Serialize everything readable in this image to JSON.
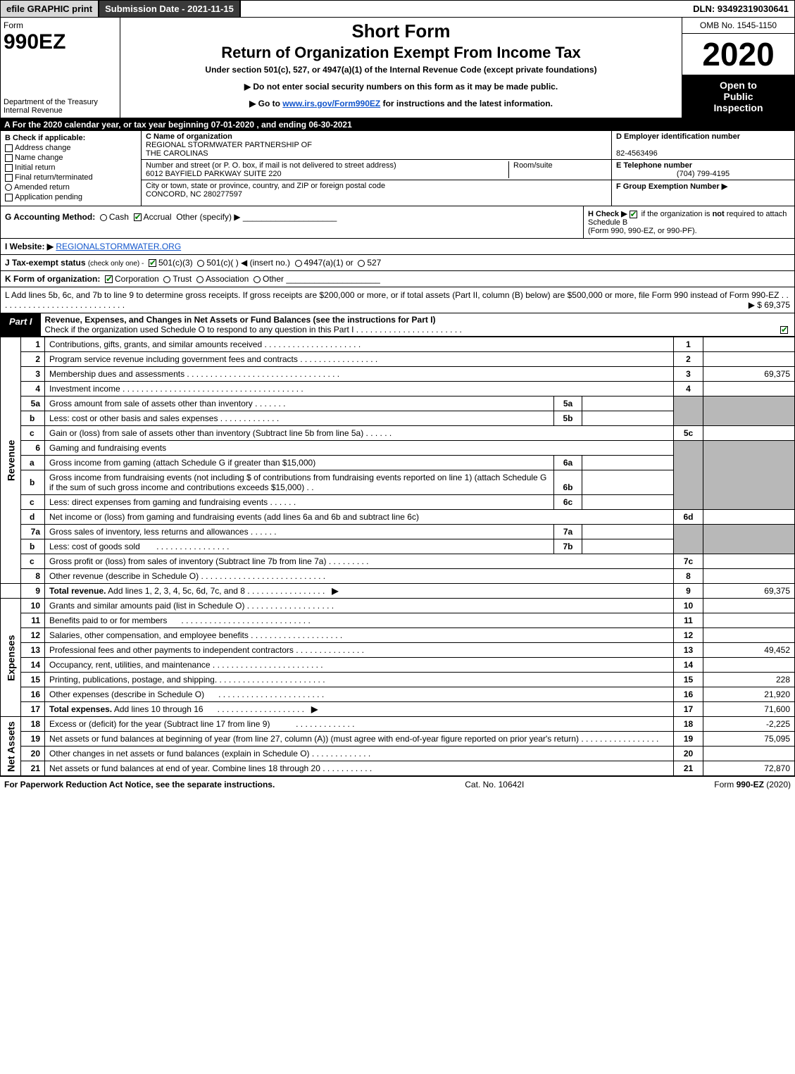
{
  "topbar": {
    "efile": "efile GRAPHIC print",
    "submission": "Submission Date - 2021-11-15",
    "dln": "DLN: 93492319030641"
  },
  "header": {
    "form_label": "Form",
    "form_number": "990EZ",
    "dept1": "Department of the Treasury",
    "dept2": "Internal Revenue",
    "title1": "Short Form",
    "title2": "Return of Organization Exempt From Income Tax",
    "under": "Under section 501(c), 527, or 4947(a)(1) of the Internal Revenue Code (except private foundations)",
    "note1": "▶ Do not enter social security numbers on this form as it may be made public.",
    "note2_pre": "▶ Go to ",
    "note2_link": "www.irs.gov/Form990EZ",
    "note2_post": " for instructions and the latest information.",
    "omb": "OMB No. 1545-1150",
    "year": "2020",
    "open1": "Open to",
    "open2": "Public",
    "open3": "Inspection"
  },
  "rowA": "A For the 2020 calendar year, or tax year beginning 07-01-2020 , and ending 06-30-2021",
  "sectionB": {
    "title": "B  Check if applicable:",
    "opts": [
      "Address change",
      "Name change",
      "Initial return",
      "Final return/terminated",
      "Amended return",
      "Application pending"
    ]
  },
  "sectionC": {
    "label": "C Name of organization",
    "name1": "REGIONAL STORMWATER PARTNERSHIP OF",
    "name2": "THE CAROLINAS",
    "street_label": "Number and street (or P. O. box, if mail is not delivered to street address)",
    "room_label": "Room/suite",
    "street": "6012 BAYFIELD PARKWAY SUITE 220",
    "city_label": "City or town, state or province, country, and ZIP or foreign postal code",
    "city": "CONCORD, NC  280277597"
  },
  "sectionDEF": {
    "d_label": "D Employer identification number",
    "d_val": "82-4563496",
    "e_label": "E Telephone number",
    "e_val": "(704) 799-4195",
    "f_label": "F Group Exemption Number  ▶"
  },
  "rowG": {
    "label": "G Accounting Method:",
    "cash": "Cash",
    "accrual": "Accrual",
    "other": "Other (specify) ▶"
  },
  "rowH": {
    "text1": "H  Check ▶",
    "text2": " if the organization is ",
    "not": "not",
    "text3": " required to attach Schedule B",
    "text4": "(Form 990, 990-EZ, or 990-PF)."
  },
  "rowI": {
    "label": "I Website: ▶",
    "link": "REGIONALSTORMWATER.ORG"
  },
  "rowJ": {
    "label": "J Tax-exempt status",
    "sub": "(check only one) -",
    "o1": "501(c)(3)",
    "o2": "501(c)(  ) ◀ (insert no.)",
    "o3": "4947(a)(1) or",
    "o4": "527"
  },
  "rowK": {
    "label": "K Form of organization:",
    "o1": "Corporation",
    "o2": "Trust",
    "o3": "Association",
    "o4": "Other"
  },
  "rowL": {
    "text": "L Add lines 5b, 6c, and 7b to line 9 to determine gross receipts. If gross receipts are $200,000 or more, or if total assets (Part II, column (B) below) are $500,000 or more, file Form 990 instead of Form 990-EZ",
    "amt_arrow": "▶ $",
    "amt": "69,375"
  },
  "part1": {
    "tab": "Part I",
    "title": "Revenue, Expenses, and Changes in Net Assets or Fund Balances (see the instructions for Part I)",
    "sub": "Check if the organization used Schedule O to respond to any question in this Part I"
  },
  "side": {
    "rev": "Revenue",
    "exp": "Expenses",
    "net": "Net Assets"
  },
  "lines": {
    "l1": "Contributions, gifts, grants, and similar amounts received",
    "l2": "Program service revenue including government fees and contracts",
    "l3": "Membership dues and assessments",
    "l3_amt": "69,375",
    "l4": "Investment income",
    "l5a": "Gross amount from sale of assets other than inventory",
    "l5b": "Less: cost or other basis and sales expenses",
    "l5c": "Gain or (loss) from sale of assets other than inventory (Subtract line 5b from line 5a)",
    "l6": "Gaming and fundraising events",
    "l6a": "Gross income from gaming (attach Schedule G if greater than $15,000)",
    "l6b": "Gross income from fundraising events (not including $                       of contributions from fundraising events reported on line 1) (attach Schedule G if the sum of such gross income and contributions exceeds $15,000)",
    "l6c": "Less: direct expenses from gaming and fundraising events",
    "l6d": "Net income or (loss) from gaming and fundraising events (add lines 6a and 6b and subtract line 6c)",
    "l7a": "Gross sales of inventory, less returns and allowances",
    "l7b": "Less: cost of goods sold",
    "l7c": "Gross profit or (loss) from sales of inventory (Subtract line 7b from line 7a)",
    "l8": "Other revenue (describe in Schedule O)",
    "l9": "Total revenue. Add lines 1, 2, 3, 4, 5c, 6d, 7c, and 8",
    "l9_bold": "Total revenue.",
    "l9_rest": " Add lines 1, 2, 3, 4, 5c, 6d, 7c, and 8",
    "l9_amt": "69,375",
    "l10": "Grants and similar amounts paid (list in Schedule O)",
    "l11": "Benefits paid to or for members",
    "l12": "Salaries, other compensation, and employee benefits",
    "l13": "Professional fees and other payments to independent contractors",
    "l13_amt": "49,452",
    "l14": "Occupancy, rent, utilities, and maintenance",
    "l15": "Printing, publications, postage, and shipping.",
    "l15_amt": "228",
    "l16": "Other expenses (describe in Schedule O)",
    "l16_amt": "21,920",
    "l17": "Total expenses. Add lines 10 through 16",
    "l17_bold": "Total expenses.",
    "l17_rest": " Add lines 10 through 16",
    "l17_amt": "71,600",
    "l18": "Excess or (deficit) for the year (Subtract line 17 from line 9)",
    "l18_amt": "-2,225",
    "l19": "Net assets or fund balances at beginning of year (from line 27, column (A)) (must agree with end-of-year figure reported on prior year's return)",
    "l19_amt": "75,095",
    "l20": "Other changes in net assets or fund balances (explain in Schedule O)",
    "l21": "Net assets or fund balances at end of year. Combine lines 18 through 20",
    "l21_amt": "72,870"
  },
  "footer": {
    "left": "For Paperwork Reduction Act Notice, see the separate instructions.",
    "mid": "Cat. No. 10642I",
    "right_pre": "Form ",
    "right_bold": "990-EZ",
    "right_post": " (2020)"
  },
  "colors": {
    "dark_bg": "#3a3a3a",
    "light_bg": "#d8d8d8",
    "black": "#000000",
    "grey": "#b8b8b8",
    "link": "#1155cc",
    "check_green": "#008000"
  }
}
